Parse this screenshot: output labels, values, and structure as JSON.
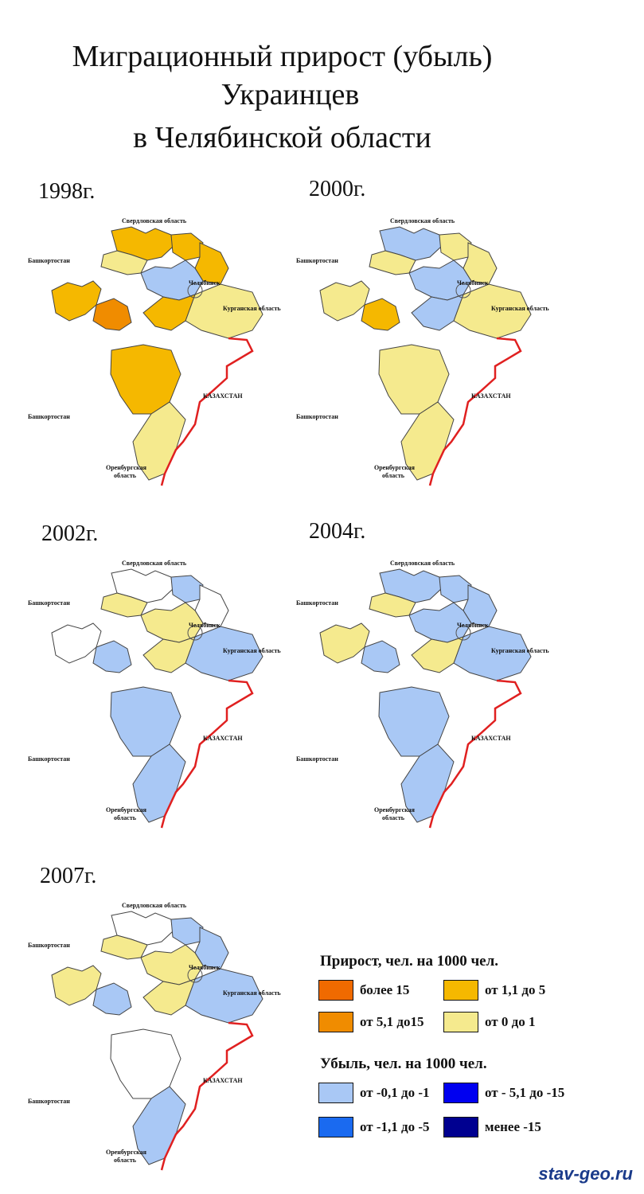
{
  "title": {
    "line1": "Миграционный прирост (убыль)",
    "line2": "Украинцев",
    "line3": "в Челябинской области"
  },
  "maps": [
    {
      "year": "1998г.",
      "fills": [
        "#f5b800",
        "#f5ea8e",
        "#f5b800",
        "#f5b800",
        "#a9c8f5",
        "#f5b800",
        "#f08c00",
        "#f5ea8e",
        "#f5b800",
        "#f5b800",
        "#f5ea8e"
      ]
    },
    {
      "year": "2000г.",
      "fills": [
        "#a9c8f5",
        "#f5ea8e",
        "#f5ea8e",
        "#f5ea8e",
        "#a9c8f5",
        "#f5ea8e",
        "#f5b800",
        "#f5ea8e",
        "#a9c8f5",
        "#f5ea8e",
        "#f5ea8e"
      ]
    },
    {
      "year": "2002г.",
      "fills": [
        "#ffffff",
        "#f5ea8e",
        "#a9c8f5",
        "#ffffff",
        "#f5ea8e",
        "#ffffff",
        "#a9c8f5",
        "#a9c8f5",
        "#f5ea8e",
        "#a9c8f5",
        "#a9c8f5"
      ]
    },
    {
      "year": "2004г.",
      "fills": [
        "#a9c8f5",
        "#f5ea8e",
        "#a9c8f5",
        "#a9c8f5",
        "#a9c8f5",
        "#f5ea8e",
        "#a9c8f5",
        "#a9c8f5",
        "#f5ea8e",
        "#a9c8f5",
        "#a9c8f5"
      ]
    },
    {
      "year": "2007г.",
      "fills": [
        "#ffffff",
        "#f5ea8e",
        "#a9c8f5",
        "#a9c8f5",
        "#f5ea8e",
        "#f5ea8e",
        "#a9c8f5",
        "#a9c8f5",
        "#f5ea8e",
        "#ffffff",
        "#a9c8f5"
      ]
    }
  ],
  "map_labels": {
    "sverdlovsk": "Свердловская область",
    "bashkortostan": "Башкортостан",
    "chelyabinsk": "Челябинск",
    "kurgan": "Курганская область",
    "kazakhstan": "КАЗАХСТАН",
    "orenburg1": "Оренбургская",
    "orenburg2": "область"
  },
  "legend": {
    "growth_title": "Прирост, чел. на 1000 чел.",
    "decline_title": "Убыль, чел. на 1000 чел.",
    "items": [
      {
        "label": "более 15",
        "color": "#f06a00"
      },
      {
        "label": "от 1,1 до 5",
        "color": "#f5b800"
      },
      {
        "label": "от 5,1 до15",
        "color": "#f08c00"
      },
      {
        "label": "от 0 до 1",
        "color": "#f5ea8e"
      },
      {
        "label": "от -0,1 до -1",
        "color": "#a9c8f5"
      },
      {
        "label": "от - 5,1 до -15",
        "color": "#0000f0"
      },
      {
        "label": "от -1,1 до -5",
        "color": "#1a6af0"
      },
      {
        "label": "менее -15",
        "color": "#000090"
      }
    ]
  },
  "site": "stav-geo.ru"
}
